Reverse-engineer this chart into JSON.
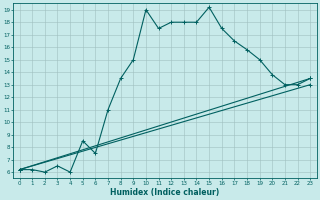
{
  "title": "",
  "xlabel": "Humidex (Indice chaleur)",
  "xlim": [
    -0.5,
    23.5
  ],
  "ylim": [
    5.5,
    19.5
  ],
  "xticks": [
    0,
    1,
    2,
    3,
    4,
    5,
    6,
    7,
    8,
    9,
    10,
    11,
    12,
    13,
    14,
    15,
    16,
    17,
    18,
    19,
    20,
    21,
    22,
    23
  ],
  "yticks": [
    6,
    7,
    8,
    9,
    10,
    11,
    12,
    13,
    14,
    15,
    16,
    17,
    18,
    19
  ],
  "bg_color": "#c8eaea",
  "grid_color": "#a0c0c0",
  "line_color": "#006060",
  "line1_x": [
    0,
    1,
    2,
    3,
    4,
    5,
    6,
    7,
    8,
    9,
    10,
    11,
    12,
    13,
    14,
    15,
    16,
    17,
    18,
    19,
    20,
    21,
    22,
    23
  ],
  "line1_y": [
    6.2,
    6.2,
    6.0,
    6.5,
    6.0,
    8.5,
    7.5,
    11.0,
    13.5,
    15.0,
    19.0,
    17.5,
    18.0,
    18.0,
    18.0,
    19.2,
    17.5,
    16.5,
    15.8,
    15.0,
    13.8,
    13.0,
    13.0,
    13.5
  ],
  "line2_x": [
    0,
    23
  ],
  "line2_y": [
    6.2,
    13.0
  ],
  "line3_x": [
    0,
    23
  ],
  "line3_y": [
    6.2,
    13.5
  ],
  "marker": "+"
}
